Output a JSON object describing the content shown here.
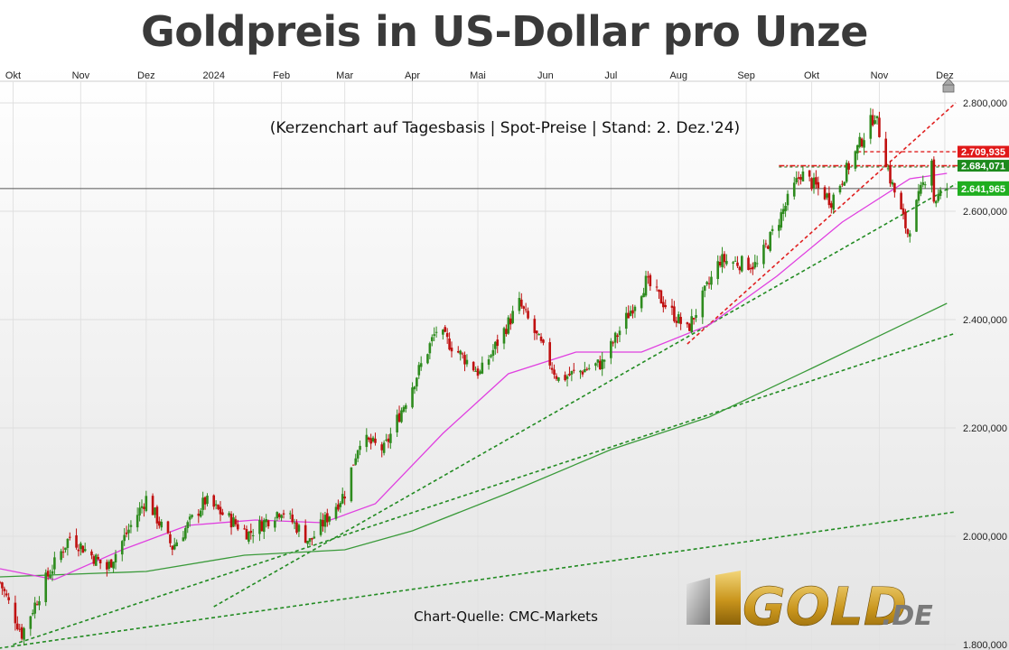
{
  "title": "Goldpreis in US-Dollar pro Unze",
  "subtitle": "(Kerzenchart auf Tagesbasis | Spot-Preise | Stand: 2. Dez.'24)",
  "source": "Chart-Quelle: CMC-Markets",
  "logo": {
    "text": "GOLD",
    "suffix": ".DE"
  },
  "colors": {
    "up": "#2e8b1e",
    "down": "#c01010",
    "sma_fast": "#e040e0",
    "sma_slow": "#3a9a3a",
    "trend_green": "#228b22",
    "trend_red": "#e02020",
    "bg_top": "#ffffff",
    "bg_bottom": "#e6e6e6"
  },
  "chart_data": {
    "type": "candlestick",
    "x_months": [
      "Okt",
      "Nov",
      "Dez",
      "2024",
      "Feb",
      "Mar",
      "Apr",
      "Mai",
      "Jun",
      "Jul",
      "Aug",
      "Sep",
      "Okt",
      "Nov",
      "Dez"
    ],
    "y_ticks": [
      "2.800,000",
      "2.600,000",
      "2.400,000",
      "2.200,000",
      "2.000,000",
      "1.800,000"
    ],
    "ylim": [
      1790,
      2840
    ],
    "close_series": [
      {
        "date": "2023-09-25",
        "close": 1915
      },
      {
        "date": "2023-10-05",
        "close": 1820
      },
      {
        "date": "2023-10-16",
        "close": 1920
      },
      {
        "date": "2023-10-27",
        "close": 2000
      },
      {
        "date": "2023-11-13",
        "close": 1940
      },
      {
        "date": "2023-12-01",
        "close": 2070
      },
      {
        "date": "2023-12-13",
        "close": 1980
      },
      {
        "date": "2023-12-28",
        "close": 2065
      },
      {
        "date": "2024-01-17",
        "close": 2005
      },
      {
        "date": "2024-02-01",
        "close": 2050
      },
      {
        "date": "2024-02-14",
        "close": 1990
      },
      {
        "date": "2024-03-01",
        "close": 2080
      },
      {
        "date": "2024-03-08",
        "close": 2180
      },
      {
        "date": "2024-03-19",
        "close": 2160
      },
      {
        "date": "2024-04-12",
        "close": 2380
      },
      {
        "date": "2024-05-02",
        "close": 2300
      },
      {
        "date": "2024-05-20",
        "close": 2430
      },
      {
        "date": "2024-06-07",
        "close": 2290
      },
      {
        "date": "2024-06-27",
        "close": 2320
      },
      {
        "date": "2024-07-17",
        "close": 2470
      },
      {
        "date": "2024-08-05",
        "close": 2380
      },
      {
        "date": "2024-08-20",
        "close": 2510
      },
      {
        "date": "2024-09-06",
        "close": 2500
      },
      {
        "date": "2024-09-26",
        "close": 2670
      },
      {
        "date": "2024-10-10",
        "close": 2620
      },
      {
        "date": "2024-10-30",
        "close": 2780
      },
      {
        "date": "2024-11-06",
        "close": 2660
      },
      {
        "date": "2024-11-14",
        "close": 2560
      },
      {
        "date": "2024-11-25",
        "close": 2700
      },
      {
        "date": "2024-11-26",
        "close": 2620
      },
      {
        "date": "2024-12-02",
        "close": 2641.965
      }
    ],
    "sma_fast": [
      {
        "date": "2023-09-25",
        "value": 1940
      },
      {
        "date": "2023-10-20",
        "value": 1920
      },
      {
        "date": "2023-11-20",
        "value": 1975
      },
      {
        "date": "2023-12-20",
        "value": 2020
      },
      {
        "date": "2024-01-20",
        "value": 2030
      },
      {
        "date": "2024-02-20",
        "value": 2025
      },
      {
        "date": "2024-03-15",
        "value": 2060
      },
      {
        "date": "2024-04-15",
        "value": 2190
      },
      {
        "date": "2024-05-15",
        "value": 2300
      },
      {
        "date": "2024-06-15",
        "value": 2340
      },
      {
        "date": "2024-07-15",
        "value": 2340
      },
      {
        "date": "2024-08-15",
        "value": 2390
      },
      {
        "date": "2024-09-15",
        "value": 2480
      },
      {
        "date": "2024-10-15",
        "value": 2580
      },
      {
        "date": "2024-11-15",
        "value": 2660
      },
      {
        "date": "2024-12-02",
        "value": 2670
      }
    ],
    "sma_slow": [
      {
        "date": "2023-09-25",
        "value": 1925
      },
      {
        "date": "2023-12-01",
        "value": 1935
      },
      {
        "date": "2024-01-15",
        "value": 1965
      },
      {
        "date": "2024-03-01",
        "value": 1975
      },
      {
        "date": "2024-04-01",
        "value": 2010
      },
      {
        "date": "2024-05-15",
        "value": 2080
      },
      {
        "date": "2024-07-01",
        "value": 2160
      },
      {
        "date": "2024-08-15",
        "value": 2220
      },
      {
        "date": "2024-10-01",
        "value": 2310
      },
      {
        "date": "2024-12-02",
        "value": 2430
      }
    ],
    "trendlines": [
      {
        "color": "green",
        "from": {
          "date": "2023-09-10",
          "value": 1785
        },
        "to": {
          "date": "2024-12-06",
          "value": 2045
        }
      },
      {
        "color": "green",
        "from": {
          "date": "2023-10-01",
          "value": 1800
        },
        "to": {
          "date": "2024-12-06",
          "value": 2375
        }
      },
      {
        "color": "green",
        "from": {
          "date": "2024-01-01",
          "value": 1870
        },
        "to": {
          "date": "2024-12-06",
          "value": 2650
        }
      },
      {
        "color": "red",
        "from": {
          "date": "2024-08-05",
          "value": 2355
        },
        "to": {
          "date": "2024-12-06",
          "value": 2800
        }
      }
    ],
    "levels": [
      {
        "value": 2709.935,
        "label": "2.709,935",
        "color": "red"
      },
      {
        "value": 2684.071,
        "label": "2.684,071",
        "color": "green"
      },
      {
        "value": 2641.965,
        "label": "2.641,965",
        "color": "green"
      }
    ]
  }
}
